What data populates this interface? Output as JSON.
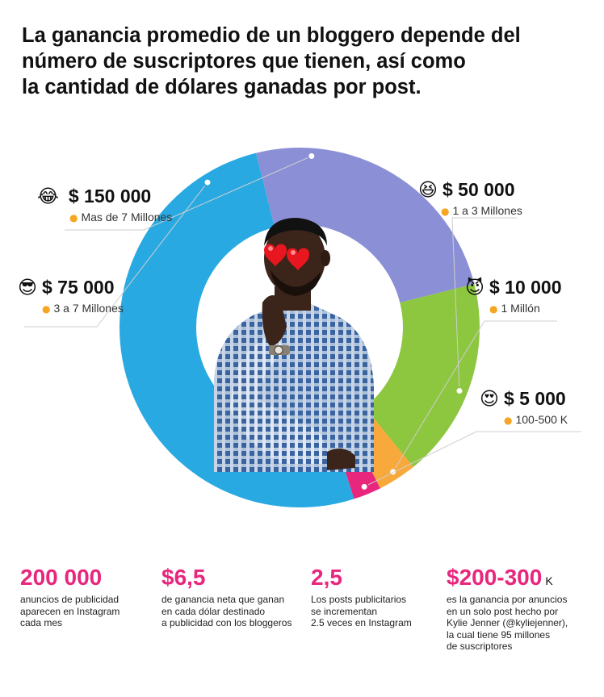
{
  "title": {
    "line1": "La ganancia promedio de un bloggero depende del",
    "line2": "número de suscriptores que tienen, así como",
    "line3": "la cantidad de dólares ganadas por post."
  },
  "chart_data": {
    "type": "pie",
    "segments": [
      {
        "amount": "$ 150 000",
        "subscribers": "Mas de 7 Millones",
        "emoji": "😂",
        "color": "#8b8fd6",
        "value": 25
      },
      {
        "amount": "$ 50 000",
        "subscribers": "1 a 3 Millones",
        "emoji": "😆",
        "color": "#8dc63f",
        "value": 18
      },
      {
        "amount": "$ 10 000",
        "subscribers": "1 Millón",
        "emoji": "😈",
        "color": "#f7a93b",
        "value": 3.5
      },
      {
        "amount": "$ 5 000",
        "subscribers": "100-500 K",
        "emoji": "😍",
        "color": "#e8267d",
        "value": 2.5
      },
      {
        "amount": "$ 75 000",
        "subscribers": "3 a 7 Millones",
        "emoji": "😎",
        "color": "#29a9e1",
        "value": 51
      }
    ]
  },
  "stats": [
    {
      "value": "200 000",
      "unit": "",
      "desc": "anuncios de publicidad\naparecen en Instagram\ncada mes"
    },
    {
      "value": "$6,5",
      "unit": "",
      "desc": "de ganancia neta que ganan\nen cada dólar destinado\na publicidad con los bloggeros"
    },
    {
      "value": "2,5",
      "unit": "",
      "desc": "Los posts publicitarios\nse incrementan\n2.5 veces en Instagram"
    },
    {
      "value": "$200-300",
      "unit": "K",
      "desc": "es la ganancia por anuncios\nen un solo post hecho por\nKylie Jenner (@kyliejenner),\nla cual tiene 95 millones\nde suscriptores"
    }
  ],
  "icons": {
    "person": "person-icon",
    "photo": "man-thinking-photo",
    "hearts": "heart-eyes-icon"
  }
}
